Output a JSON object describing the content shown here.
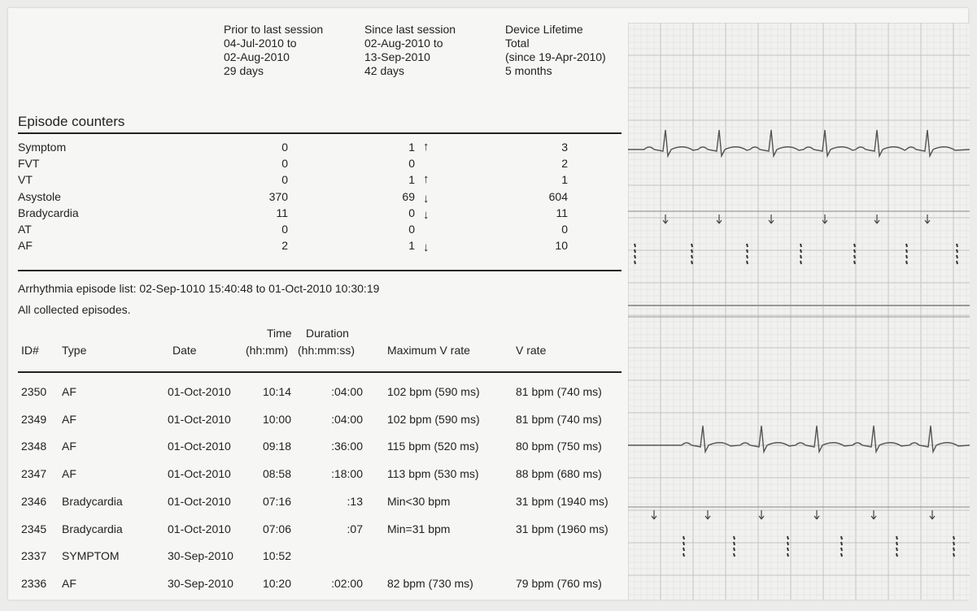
{
  "summary_columns": [
    {
      "lines": [
        "Prior to last session",
        "04-Jul-2010 to",
        "02-Aug-2010",
        "29 days"
      ]
    },
    {
      "lines": [
        "Since last session",
        "02-Aug-2010 to",
        "13-Sep-2010",
        "42 days"
      ]
    },
    {
      "lines": [
        "Device Lifetime",
        "Total",
        "(since 19-Apr-2010)",
        "5 months"
      ]
    }
  ],
  "episode_counters": {
    "title": "Episode counters",
    "rows": [
      {
        "label": "Symptom",
        "prior": "0",
        "since": "1",
        "trend": "up",
        "lifetime": "3"
      },
      {
        "label": "FVT",
        "prior": "0",
        "since": "0",
        "trend": "",
        "lifetime": "2"
      },
      {
        "label": "VT",
        "prior": "0",
        "since": "1",
        "trend": "up",
        "lifetime": "1"
      },
      {
        "label": "Asystole",
        "prior": "370",
        "since": "69",
        "trend": "down",
        "lifetime": "604"
      },
      {
        "label": "Bradycardia",
        "prior": "11",
        "since": "0",
        "trend": "down",
        "lifetime": "11"
      },
      {
        "label": "AT",
        "prior": "0",
        "since": "0",
        "trend": "",
        "lifetime": "0"
      },
      {
        "label": "AF",
        "prior": "2",
        "since": "1",
        "trend": "down",
        "lifetime": "10"
      }
    ]
  },
  "arrhythmia_list": {
    "range_text": "Arrhythmia episode list: 02-Sep-1010 15:40:48 to 01-Oct-2010 10:30:19",
    "filter_text": "All collected episodes.",
    "headers": {
      "id": "ID#",
      "type": "Type",
      "date": "Date",
      "time_1": "Time",
      "time_2": "(hh:mm)",
      "duration_1": "Duration",
      "duration_2": "(hh:mm:ss)",
      "max_v_rate": "Maximum V rate",
      "v_rate": "V rate"
    },
    "episodes": [
      {
        "id": "2350",
        "type": "AF",
        "date": "01-Oct-2010",
        "time": "10:14",
        "duration": ":04:00",
        "max_v_rate": "102 bpm (590 ms)",
        "v_rate": "81 bpm (740 ms)"
      },
      {
        "id": "2349",
        "type": "AF",
        "date": "01-Oct-2010",
        "time": "10:00",
        "duration": ":04:00",
        "max_v_rate": "102 bpm (590 ms)",
        "v_rate": "81 bpm (740 ms)"
      },
      {
        "id": "2348",
        "type": "AF",
        "date": "01-Oct-2010",
        "time": "09:18",
        "duration": ":36:00",
        "max_v_rate": "115 bpm (520 ms)",
        "v_rate": "80 bpm (750 ms)"
      },
      {
        "id": "2347",
        "type": "AF",
        "date": "01-Oct-2010",
        "time": "08:58",
        "duration": ":18:00",
        "max_v_rate": "113 bpm (530 ms)",
        "v_rate": "88 bpm (680 ms)"
      },
      {
        "id": "2346",
        "type": "Bradycardia",
        "date": "01-Oct-2010",
        "time": "07:16",
        "duration": ":13",
        "max_v_rate": "Min<30 bpm",
        "v_rate": "31 bpm (1940 ms)"
      },
      {
        "id": "2345",
        "type": "Bradycardia",
        "date": "01-Oct-2010",
        "time": "07:06",
        "duration": ":07",
        "max_v_rate": "Min=31 bpm",
        "v_rate": "31 bpm (1960 ms)"
      },
      {
        "id": "2337",
        "type": "SYMPTOM",
        "date": "30-Sep-2010",
        "time": "10:52",
        "duration": "",
        "max_v_rate": "",
        "v_rate": ""
      },
      {
        "id": "2336",
        "type": "AF",
        "date": "30-Sep-2010",
        "time": "10:20",
        "duration": ":02:00",
        "max_v_rate": "82 bpm (730 ms)",
        "v_rate": "79 bpm (760 ms)"
      }
    ]
  },
  "colors": {
    "ecg_grid_major": "#c2c2c2",
    "ecg_grid_minor": "#dcdcdc",
    "ecg_trace": "#555555",
    "ecg_background": "#f1f1ef"
  },
  "ecg_strips": [
    {
      "name": "strip-1"
    },
    {
      "name": "strip-2"
    }
  ]
}
